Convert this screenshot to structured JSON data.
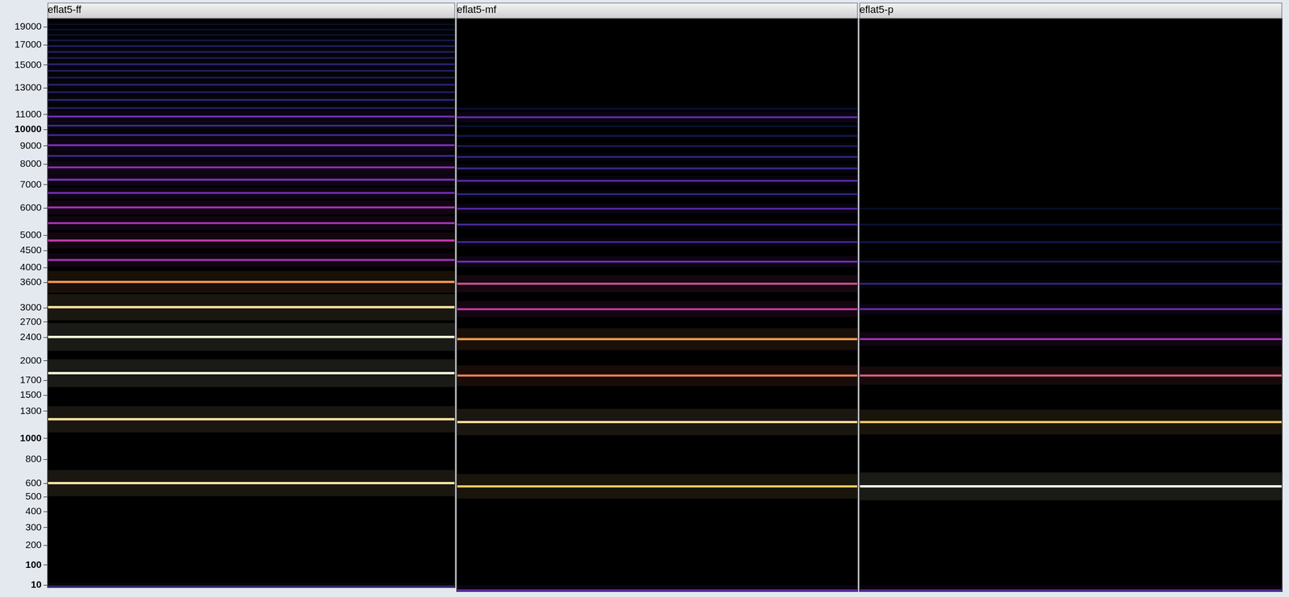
{
  "chart_data": [
    {
      "type": "spectrogram",
      "title": "eflat5-ff",
      "ylim": [
        0,
        20000
      ],
      "yticks": [
        10,
        100,
        200,
        300,
        400,
        500,
        600,
        800,
        1000,
        1300,
        1500,
        1700,
        2000,
        2400,
        2700,
        3000,
        3600,
        4000,
        4500,
        5000,
        6000,
        7000,
        8000,
        9000,
        10000,
        11000,
        13000,
        15000,
        17000,
        19000
      ],
      "grid": false,
      "tick_labels": "y",
      "frequencies": [
        5,
        603,
        1206,
        1809,
        2412,
        3015,
        3618,
        4221,
        4824,
        5427,
        6030,
        6633,
        7236,
        7839,
        8442,
        9045,
        9648,
        10251,
        10854,
        11457,
        12060,
        12663,
        13266,
        13869,
        14472,
        15075,
        15678,
        16281,
        16884,
        17487,
        18090,
        18693,
        19296
      ],
      "levels": [
        -60,
        -22,
        -22,
        -18,
        -20,
        -22,
        -28,
        -42,
        -38,
        -42,
        -42,
        -48,
        -46,
        -44,
        -55,
        -46,
        -55,
        -55,
        -48,
        -62,
        -58,
        -62,
        -60,
        -64,
        -62,
        -60,
        -64,
        -62,
        -62,
        -66,
        -70,
        -70,
        -72
      ]
    },
    {
      "type": "spectrogram",
      "title": "eflat5-mf",
      "ylim": [
        0,
        20000
      ],
      "grid": false,
      "tick_labels": false,
      "frequencies": [
        5,
        603,
        1206,
        1809,
        2412,
        3015,
        3618,
        4221,
        4824,
        5427,
        6030,
        6633,
        7236,
        7839,
        8442,
        9045,
        9648,
        10251,
        10854,
        11457
      ],
      "levels": [
        -50,
        -24,
        -22,
        -30,
        -28,
        -38,
        -36,
        -48,
        -55,
        -55,
        -52,
        -58,
        -52,
        -56,
        -58,
        -64,
        -66,
        -70,
        -50,
        -70
      ]
    },
    {
      "type": "spectrogram",
      "title": "eflat5-p",
      "ylim": [
        0,
        20000
      ],
      "grid": false,
      "tick_labels": false,
      "frequencies": [
        5,
        603,
        1206,
        1809,
        2412,
        3015,
        3618,
        4221,
        4824,
        5427,
        6030
      ],
      "levels": [
        -52,
        -18,
        -24,
        -34,
        -42,
        -50,
        -58,
        -64,
        -66,
        -70,
        -72
      ]
    }
  ]
}
